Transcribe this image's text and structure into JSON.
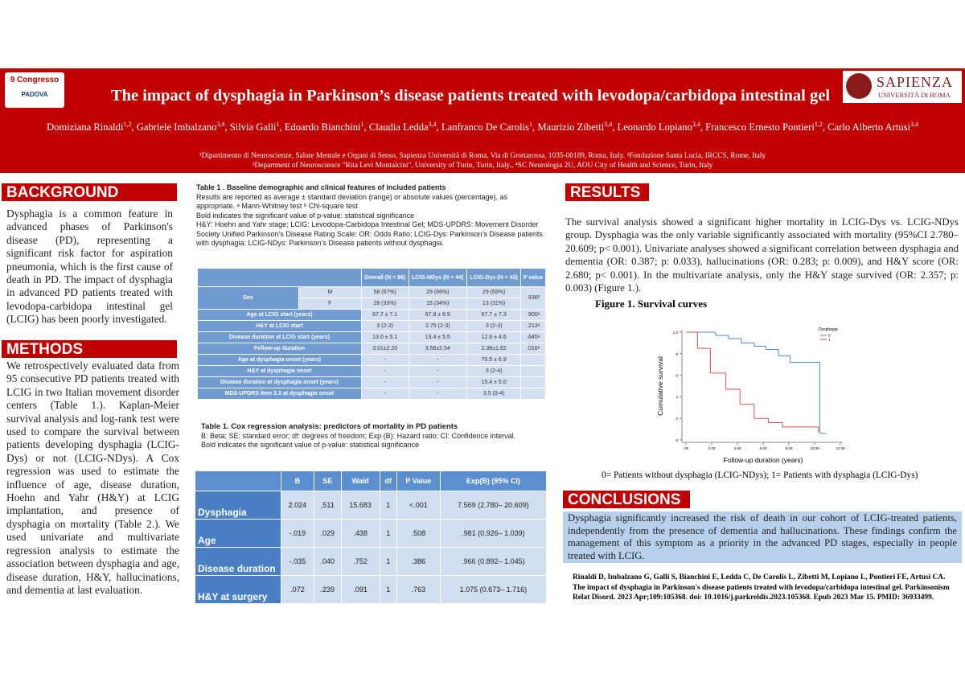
{
  "header": {
    "logo_left": {
      "line1": "9 Congresso",
      "line2": "PADOVA"
    },
    "logo_right": {
      "name": "SAPIENZA",
      "sub": "UNIVERSITÀ DI ROMA"
    },
    "title": "The impact of dysphagia in Parkinson’s disease patients treated with levodopa/carbidopa intestinal gel",
    "authors": [
      {
        "name": "Domiziana Rinaldi",
        "aff": "1,2"
      },
      {
        "name": "Gabriele Imbalzano",
        "aff": "3,4"
      },
      {
        "name": "Silvia Galli",
        "aff": "1"
      },
      {
        "name": "Edoardo Bianchini",
        "aff": "1"
      },
      {
        "name": "Claudia Ledda",
        "aff": "3,4"
      },
      {
        "name": "Lanfranco De Carolis",
        "aff": "1"
      },
      {
        "name": "Maurizio Zibetti",
        "aff": "3,4"
      },
      {
        "name": "Leonardo Lopiano",
        "aff": "3,4"
      },
      {
        "name": "Francesco Ernesto Pontieri",
        "aff": "1,2"
      },
      {
        "name": "Carlo Alberto Artusi",
        "aff": "3,4"
      }
    ],
    "affiliations": [
      "¹Dipartimento di Neuroscienze, Salute Mentale e Organi di Senso, Sapienza Università di Roma, Via di Grottarossa, 1035-00189, Roma, Italy. ²Fondazione Santa Lucia, IRCCS, Rome, Italy",
      "³Department of Neuroscience \"Rita Levi Montalcini\", University of Turin, Turin, Italy., ⁴SC Neurologia 2U, AOU City of Health and Science, Turin, Italy"
    ]
  },
  "background": {
    "heading": "BACKGROUND",
    "text": "Dysphagia is a common feature in advanced phases of Parkinson's disease (PD), representing a significant risk factor for aspiration pneumonia, which is the first cause of death in PD. The impact of dysphagia in advanced PD patients treated with levodopa-carbidopa intestinal gel (LCIG) has been poorly investigated."
  },
  "methods": {
    "heading": "METHODS",
    "text": "We retrospectively evaluated data from 95 consecutive PD patients treated with LCIG in two Italian movement disorder centers (Table 1.). Kaplan-Meier survival analysis and log-rank test were used to compare the survival between patients developing dysphagia (LCIG-Dys) or not (LCIG-NDys). A Cox regression was used to estimate the influence of age, disease duration, Hoehn and Yahr (H&Y) at LCIG implantation, and presence of dysphagia on mortality (Table 2.). We used univariate and multivariate regression analysis to estimate the association between dysphagia and age, disease duration, H&Y, hallucinations, and dementia at last evaluation."
  },
  "table1": {
    "title": "Table 1 . Baseline demographic and clinical features of included patients",
    "notes": [
      "Results are reported as average ± standard deviation (range) or absolute values (percentage), as appropriate. ᵃ Mann-Whitney test ᵇ Chi-square test",
      "Bold indicates the significant value of p-value: statistical significance",
      "H&Y: Hoehn and Yahr stage; LCIG: Levodopa-Carbidopa Intestinal Gel; MDS-UPDRS: Movement Disorder Society Unified Parkinson’s Disease Rating Scale; OR: Odds Ratio; LCIG-Dys: Parkinson’s Disease patients with dysphagia; LCIG-NDys: Parkinson’s Disease patients without dysphagia."
    ],
    "columns": [
      "Overall (N = 86)",
      "LCIG-NDys (N = 44)",
      "LCIG-Dys (N = 42)",
      "P value"
    ],
    "sex": {
      "label": "Sex",
      "p": ".936ᵇ",
      "rows": [
        {
          "key": "M",
          "values": [
            "58 (67%)",
            "29 (66%)",
            "29 (69%)"
          ]
        },
        {
          "key": "F",
          "values": [
            "28 (33%)",
            "15 (34%)",
            "13 (31%)"
          ]
        }
      ]
    },
    "rows": [
      {
        "label": "Age at LCIG start (years)",
        "values": [
          "67.7 ± 7.1",
          "67.8 ± 6.9",
          "67.7 ± 7.3"
        ],
        "p": ".900ᵃ"
      },
      {
        "label": "H&Y at LCIG start",
        "values": [
          "3 (2-3)",
          "2.75 (2-3)",
          "3 (2-3)"
        ],
        "p": ".213ᵃ"
      },
      {
        "label": "Disease duration at LCIG start (years)",
        "values": [
          "13.0 ± 5.1",
          "13.4 ± 5.5",
          "12.6 ± 4.6"
        ],
        "p": ".845ᵃ"
      },
      {
        "label": "Follow-up duration",
        "values": [
          "3.01±2.20",
          "3.56±2.54",
          "2.38±1.62"
        ],
        "p": ".016ᵃ"
      },
      {
        "label": "Age at dysphagia onset (years)",
        "values": [
          "-",
          "-",
          "70.5 ± 6.9"
        ]
      },
      {
        "label": "H&Y at dysphagia onset",
        "values": [
          "-",
          "-",
          "3 (2-4)"
        ]
      },
      {
        "label": "Disease duration at dysphagia onset (years)",
        "values": [
          "-",
          "-",
          "15.4 ± 5.0"
        ]
      },
      {
        "label": "MDS-UPDRS item 2.3 at dysphagia onset",
        "values": [
          "-",
          "-",
          "3.5 (3-4)"
        ]
      }
    ]
  },
  "table2": {
    "title": "Table 1. Cox regression analysis: predictors of mortality in PD patients",
    "notes": [
      "B: Beta; SE: standard error; df: degrees of freedom; Exp (B): Hazard ratio; CI: Confidence interval.",
      "Bold indicates the significant value of p-value: statistical significance"
    ],
    "columns": [
      "B",
      "SE",
      "Wald",
      "df",
      "P Value",
      "Exp(B) (95% CI)"
    ],
    "rows": [
      {
        "label": "Dysphagia",
        "values": [
          "2.024",
          ",511",
          "15.683",
          "1",
          "<.001",
          "7.569 (2.780– 20.609)"
        ]
      },
      {
        "label": "Age",
        "values": [
          "-.019",
          ".029",
          ".438",
          "1",
          ".508",
          ".981 (0.926– 1.039)"
        ]
      },
      {
        "label": "Disease duration",
        "values": [
          "-.035",
          ".040",
          ".752",
          "1",
          ".386",
          ".966 (0.892– 1.045)"
        ]
      },
      {
        "label": "H&Y at surgery",
        "values": [
          ".072",
          ".239",
          ".091",
          "1",
          ".763",
          "1.075 (0.673– 1.716)"
        ]
      }
    ]
  },
  "results": {
    "heading": "RESULTS",
    "text": "The survival analysis showed a significant higher mortality in LCIG-Dys vs. LCIG-NDys group. Dysphagia was the only variable significantly associated with mortality (95%CI 2.780–20.609; p< 0.001). Univariate analyses showed a significant correlation between dysphagia and dementia (OR: 0.387; p: 0.033), hallucinations (OR: 0.283; p: 0.009), and H&Y score (OR: 2.680; p< 0.001). In the multivariate analysis, only the H&Y stage survived (OR: 2.357; p: 0.003) (Figure 1.)."
  },
  "figure": {
    "title": "Figure 1. Survival curves",
    "caption": "0= Patients without dysphagia (LCIG-NDys); 1= Patients with dysphagia (LCIG-Dys)",
    "chart": {
      "type": "step",
      "xlabel": "Follow-up duration (years)",
      "ylabel": "Cumulative survival",
      "legend_title": "Dysphagia",
      "xlim": [
        0,
        12
      ],
      "ylim": [
        0,
        1
      ],
      "xticks": [
        {
          "value": 0,
          "label": ".00"
        },
        {
          "value": 2,
          "label": "2.00"
        },
        {
          "value": 4,
          "label": "4.00"
        },
        {
          "value": 6,
          "label": "6.00"
        },
        {
          "value": 8,
          "label": "8.00"
        },
        {
          "value": 10,
          "label": "10.00"
        },
        {
          "value": 12,
          "label": "12.00"
        }
      ],
      "yticks": [
        {
          "value": 0,
          "label": ".0"
        },
        {
          "value": 0.2,
          "label": ".2"
        },
        {
          "value": 0.4,
          "label": ".4"
        },
        {
          "value": 0.6,
          "label": ".6"
        },
        {
          "value": 0.8,
          "label": ".8"
        },
        {
          "value": 1,
          "label": "1.0"
        }
      ],
      "series": [
        {
          "name": "0",
          "color": "#4f86c6",
          "x": [
            0,
            2.3,
            3.3,
            4.3,
            5.3,
            6.2,
            7.2,
            8.1,
            10.4,
            10.9
          ],
          "values": [
            1,
            0.97,
            0.94,
            0.9,
            0.87,
            0.84,
            0.78,
            0.72,
            0.06,
            0.06
          ]
        },
        {
          "name": "1",
          "color": "#d9534f",
          "x": [
            0,
            0.9,
            1.9,
            3.1,
            4.2,
            5.3,
            6.4,
            7.5,
            10.3
          ],
          "values": [
            1,
            0.85,
            0.62,
            0.47,
            0.33,
            0.2,
            0.16,
            0.12,
            0.07
          ]
        }
      ]
    }
  },
  "conclusions": {
    "heading": "CONCLUSIONS",
    "text": "Dysphagia significantly increased the risk of death in our cohort of LCIG-treated patients, independently from the presence of dementia and hallucinations. These findings confirm the management of this symptom as a priority in the advanced PD stages, especially in people treated with LCIG."
  },
  "reference": "Rinaldi D, Imbalzano G, Galli S, Bianchini E, Ledda C, De Carolis L, Zibetti M, Lopiano L, Pontieri FE, Artusi CA. The impact of dysphagia in Parkinson's disease patients treated with levodopa/carbidopa intestinal gel. Parkinsonism Relat Disord. 2023 Apr;109:105368. doi: 10.1016/j.parkreldis.2023.105368. Epub 2023 Mar 15. PMID: 36933499."
}
